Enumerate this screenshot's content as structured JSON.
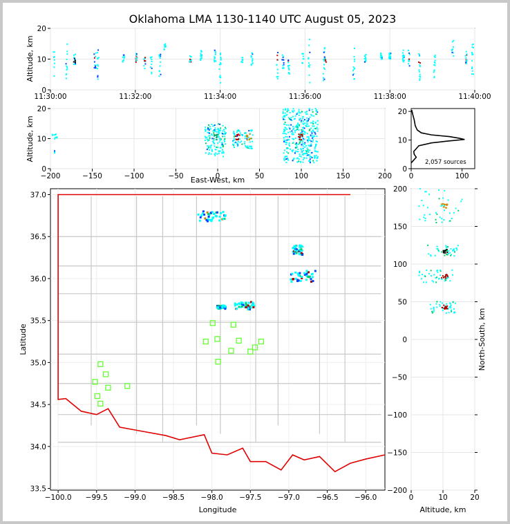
{
  "chart_data": [
    {
      "type": "scatter",
      "panel": "time-altitude",
      "title": "Oklahoma LMA 1130-1140 UTC August 05, 2023",
      "xlabel": "",
      "ylabel": "Altitude, km",
      "x_ticks": [
        "11:30:00",
        "11:32:00",
        "11:34:00",
        "11:36:00",
        "11:38:00",
        "11:40:00"
      ],
      "xlim_minutes": [
        0,
        10
      ],
      "ylim": [
        0,
        20
      ],
      "y_ticks": [
        0,
        10,
        20
      ],
      "grid": true,
      "bursts": [
        {
          "t": 0.08,
          "z": [
            4,
            13
          ],
          "c": "#00ffff"
        },
        {
          "t": 0.38,
          "z": [
            3,
            16
          ],
          "c": "#00ffff"
        },
        {
          "t": 0.57,
          "z": [
            8,
            12
          ],
          "c": "#000000"
        },
        {
          "t": 1.05,
          "z": [
            7,
            12
          ],
          "c": "#b00000"
        },
        {
          "t": 1.12,
          "z": [
            2,
            13
          ],
          "c": "#00ffff"
        },
        {
          "t": 1.72,
          "z": [
            9,
            12
          ],
          "c": "#00ffff"
        },
        {
          "t": 2.02,
          "z": [
            9,
            12
          ],
          "c": "#cc0000"
        },
        {
          "t": 2.22,
          "z": [
            6,
            11
          ],
          "c": "#cc0000"
        },
        {
          "t": 2.38,
          "z": [
            5,
            11
          ],
          "c": "#00ffff"
        },
        {
          "t": 2.58,
          "z": [
            4,
            12
          ],
          "c": "#00ffff"
        },
        {
          "t": 2.7,
          "z": [
            13,
            15
          ],
          "c": "#00ffff"
        },
        {
          "t": 3.3,
          "z": [
            9,
            11
          ],
          "c": "#cc0000"
        },
        {
          "t": 3.55,
          "z": [
            9,
            13
          ],
          "c": "#00ffff"
        },
        {
          "t": 3.88,
          "z": [
            9,
            13
          ],
          "c": "#00ffff"
        },
        {
          "t": 4.0,
          "z": [
            2,
            13
          ],
          "c": "#00ffff"
        },
        {
          "t": 4.52,
          "z": [
            8,
            12
          ],
          "c": "#00ffff"
        },
        {
          "t": 4.75,
          "z": [
            8,
            12
          ],
          "c": "#00ffff"
        },
        {
          "t": 5.35,
          "z": [
            3,
            13
          ],
          "c": "#cc0000"
        },
        {
          "t": 5.48,
          "z": [
            7,
            12
          ],
          "c": "#00ffff"
        },
        {
          "t": 5.62,
          "z": [
            5,
            12
          ],
          "c": "#cc0000"
        },
        {
          "t": 5.95,
          "z": [
            8,
            12
          ],
          "c": "#00ffff"
        },
        {
          "t": 6.1,
          "z": [
            2,
            17
          ],
          "c": "#00ffff"
        },
        {
          "t": 6.45,
          "z": [
            3,
            14
          ],
          "c": "#00ffff"
        },
        {
          "t": 6.48,
          "z": [
            9,
            11
          ],
          "c": "#cc0000"
        },
        {
          "t": 7.15,
          "z": [
            2,
            14
          ],
          "c": "#00ffff"
        },
        {
          "t": 7.42,
          "z": [
            9,
            12
          ],
          "c": "#00ffff"
        },
        {
          "t": 7.8,
          "z": [
            10,
            12
          ],
          "c": "#00ffff"
        },
        {
          "t": 8.0,
          "z": [
            10,
            12
          ],
          "c": "#00ffff"
        },
        {
          "t": 8.32,
          "z": [
            9,
            13
          ],
          "c": "#00ffff"
        },
        {
          "t": 8.45,
          "z": [
            4,
            13
          ],
          "c": "#b00000"
        },
        {
          "t": 8.7,
          "z": [
            3,
            12
          ],
          "c": "#cc0000"
        },
        {
          "t": 9.05,
          "z": [
            4,
            12
          ],
          "c": "#00ffff"
        },
        {
          "t": 9.48,
          "z": [
            11,
            16
          ],
          "c": "#00ffff"
        },
        {
          "t": 9.8,
          "z": [
            8,
            13
          ],
          "c": "#cc0000"
        },
        {
          "t": 9.95,
          "z": [
            5,
            15
          ],
          "c": "#00ffff"
        }
      ]
    },
    {
      "type": "scatter",
      "panel": "east-west-altitude",
      "xlabel": "East-West, km",
      "ylabel": "Altitude, km",
      "xlim": [
        -200,
        200
      ],
      "ylim": [
        0,
        20
      ],
      "x_ticks": [
        -200,
        -150,
        -100,
        -50,
        0,
        50,
        100,
        150,
        200
      ],
      "y_ticks": [
        0,
        10,
        20
      ],
      "clusters": [
        {
          "x": [
            -15,
            10
          ],
          "z": [
            4,
            15
          ],
          "c": "#00ffff",
          "core": "#00aa66"
        },
        {
          "x": [
            18,
            30
          ],
          "z": [
            7,
            13
          ],
          "c": "#00ffff",
          "core": "#b00000"
        },
        {
          "x": [
            32,
            42
          ],
          "z": [
            6,
            13
          ],
          "c": "#00ffff",
          "core": "#cc8800"
        },
        {
          "x": [
            78,
            120
          ],
          "z": [
            2,
            20
          ],
          "c": "#00ffff",
          "core": "#b00000"
        },
        {
          "x": [
            -195,
            -195
          ],
          "z": [
            5,
            6
          ],
          "c": "#00ffff",
          "core": "#00ffff"
        }
      ]
    },
    {
      "type": "line",
      "panel": "altitude-histogram",
      "xlim": [
        0,
        125
      ],
      "ylim": [
        0,
        21
      ],
      "x_ticks": [
        0,
        100
      ],
      "y_ticks": [
        0,
        10,
        20
      ],
      "annotation": "2,057 sources",
      "profile": [
        [
          0,
          2
        ],
        [
          5,
          3
        ],
        [
          10,
          4
        ],
        [
          6,
          5
        ],
        [
          5,
          6
        ],
        [
          10,
          7
        ],
        [
          15,
          8
        ],
        [
          40,
          9
        ],
        [
          70,
          9.6
        ],
        [
          105,
          10.2
        ],
        [
          95,
          10.6
        ],
        [
          75,
          11.2
        ],
        [
          40,
          11.8
        ],
        [
          20,
          12.5
        ],
        [
          12,
          13.5
        ],
        [
          8,
          15
        ],
        [
          6,
          17
        ],
        [
          3,
          19
        ],
        [
          1,
          20.5
        ]
      ]
    },
    {
      "type": "scatter",
      "panel": "plan-view-map",
      "xlabel": "Longitude",
      "ylabel": "Latitude",
      "xlim": [
        -100.1,
        -95.75
      ],
      "ylim": [
        33.48,
        37.07
      ],
      "x_ticks": [
        -100.0,
        -99.5,
        -99.0,
        -98.5,
        -98.0,
        -97.5,
        -97.0,
        -96.5,
        -96.0
      ],
      "y_ticks": [
        33.5,
        34.0,
        34.5,
        35.0,
        35.5,
        36.0,
        36.5,
        37.0
      ],
      "clusters": [
        {
          "lon": [
            -98.18,
            -97.82
          ],
          "lat": [
            36.68,
            36.8
          ],
          "c": "#00ffff",
          "core": "#cc8800"
        },
        {
          "lon": [
            -96.95,
            -96.82
          ],
          "lat": [
            36.28,
            36.4
          ],
          "c": "#00ffff",
          "core": "#b00000"
        },
        {
          "lon": [
            -96.98,
            -96.65
          ],
          "lat": [
            35.96,
            36.1
          ],
          "c": "#00ffff",
          "core": "#b00000"
        },
        {
          "lon": [
            -97.93,
            -97.82
          ],
          "lat": [
            35.64,
            35.68
          ],
          "c": "#00ffff",
          "core": "#000000"
        },
        {
          "lon": [
            -97.7,
            -97.45
          ],
          "lat": [
            35.63,
            35.72
          ],
          "c": "#00ffff",
          "core": "#b00000"
        }
      ],
      "stations": [
        [
          -97.99,
          35.47
        ],
        [
          -97.72,
          35.45
        ],
        [
          -98.08,
          35.25
        ],
        [
          -97.93,
          35.28
        ],
        [
          -97.65,
          35.26
        ],
        [
          -97.36,
          35.25
        ],
        [
          -97.75,
          35.14
        ],
        [
          -97.44,
          35.18
        ],
        [
          -97.5,
          35.13
        ],
        [
          -97.92,
          35.01
        ],
        [
          -99.45,
          34.98
        ],
        [
          -99.38,
          34.86
        ],
        [
          -99.52,
          34.77
        ],
        [
          -99.35,
          34.7
        ],
        [
          -99.1,
          34.72
        ],
        [
          -99.49,
          34.6
        ],
        [
          -99.45,
          34.51
        ]
      ]
    },
    {
      "type": "scatter",
      "panel": "altitude-north-south",
      "xlabel": "Altitude, km",
      "ylabel": "North-South, km",
      "xlim": [
        0,
        20
      ],
      "ylim": [
        -200,
        200
      ],
      "x_ticks": [
        0,
        10,
        20
      ],
      "y_ticks": [
        -200,
        -150,
        -100,
        -50,
        0,
        50,
        100,
        150,
        200
      ],
      "clusters": [
        {
          "z": [
            2,
            16
          ],
          "y": [
            155,
            200
          ],
          "c": "#00ffff",
          "core": "#cc8800"
        },
        {
          "z": [
            5,
            15
          ],
          "y": [
            110,
            125
          ],
          "c": "#00ffff",
          "core": "#000000"
        },
        {
          "z": [
            2,
            14
          ],
          "y": [
            75,
            92
          ],
          "c": "#00ffff",
          "core": "#b00000"
        },
        {
          "z": [
            6,
            14
          ],
          "y": [
            35,
            50
          ],
          "c": "#00ffff",
          "core": "#b00000"
        }
      ]
    }
  ]
}
